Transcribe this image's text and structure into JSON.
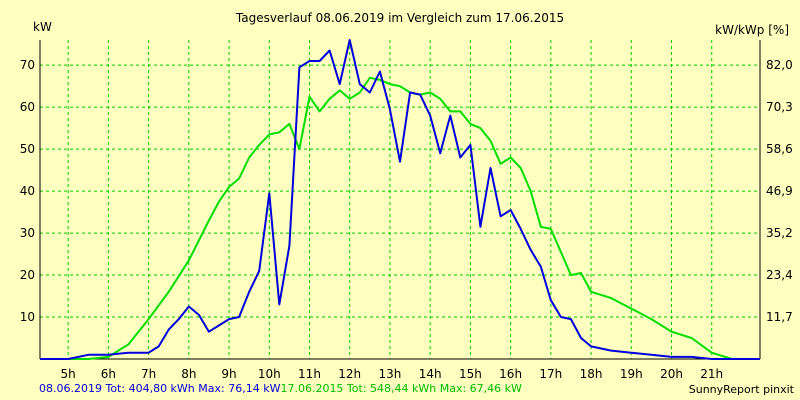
{
  "chart_data": {
    "type": "line",
    "title": "Tagesverlauf 08.06.2019 im Vergleich zum 17.06.2015",
    "ylabel_left": "kW",
    "ylabel_right": "kW/kWp [%]",
    "x_ticks": [
      "5h",
      "6h",
      "7h",
      "8h",
      "9h",
      "10h",
      "11h",
      "12h",
      "13h",
      "14h",
      "15h",
      "16h",
      "17h",
      "18h",
      "19h",
      "20h",
      "21h"
    ],
    "y_ticks_left": [
      "10",
      "20",
      "30",
      "40",
      "50",
      "60",
      "70"
    ],
    "y_ticks_right": [
      "11,7",
      "23,4",
      "35,2",
      "46,9",
      "58,6",
      "70,3",
      "82,0"
    ],
    "xlim": [
      4.3,
      22.2
    ],
    "ylim": [
      0,
      76
    ],
    "grid": true,
    "series": [
      {
        "name": "08.06.2019",
        "color": "#0000DD",
        "x": [
          4.3,
          5.0,
          5.5,
          6.0,
          6.5,
          7.0,
          7.25,
          7.5,
          7.75,
          8.0,
          8.25,
          8.5,
          8.75,
          9.0,
          9.25,
          9.5,
          9.75,
          10.0,
          10.25,
          10.5,
          10.75,
          11.0,
          11.25,
          11.5,
          11.75,
          12.0,
          12.25,
          12.5,
          12.75,
          13.0,
          13.25,
          13.5,
          13.75,
          14.0,
          14.25,
          14.5,
          14.75,
          15.0,
          15.25,
          15.5,
          15.75,
          16.0,
          16.25,
          16.5,
          16.75,
          17.0,
          17.25,
          17.5,
          17.75,
          18.0,
          18.5,
          19.0,
          19.5,
          20.0,
          20.5,
          21.0,
          21.5,
          22.2
        ],
        "values": [
          0,
          0,
          1,
          1,
          1.5,
          1.5,
          3,
          7,
          9.5,
          12.5,
          10.5,
          6.5,
          8,
          9.5,
          10,
          16,
          21,
          39.5,
          13,
          27,
          69.5,
          71,
          71,
          73.5,
          65.5,
          76,
          65.5,
          63.5,
          68.5,
          59.5,
          47,
          63.5,
          63,
          58,
          49,
          58,
          48,
          51,
          31.5,
          45.5,
          34,
          35.5,
          31,
          26,
          22,
          14,
          10,
          9.5,
          5,
          3,
          2,
          1.5,
          1,
          0.5,
          0.5,
          0,
          0,
          0
        ]
      },
      {
        "name": "17.06.2015",
        "color": "#00DD00",
        "x": [
          4.3,
          5.0,
          5.5,
          6.0,
          6.5,
          7.0,
          7.5,
          8.0,
          8.5,
          8.75,
          9.0,
          9.25,
          9.5,
          9.75,
          10.0,
          10.25,
          10.5,
          10.75,
          11.0,
          11.25,
          11.5,
          11.75,
          12.0,
          12.25,
          12.5,
          12.75,
          13.0,
          13.25,
          13.5,
          13.75,
          14.0,
          14.25,
          14.5,
          14.75,
          15.0,
          15.25,
          15.5,
          15.75,
          16.0,
          16.25,
          16.5,
          16.75,
          17.0,
          17.25,
          17.5,
          17.75,
          18.0,
          18.5,
          19.0,
          19.5,
          20.0,
          20.5,
          21.0,
          21.5,
          22.2
        ],
        "values": [
          0,
          0,
          0,
          0.5,
          3.5,
          9.5,
          16,
          23.5,
          33,
          37.5,
          41,
          43,
          48,
          51,
          53.5,
          54,
          56,
          50,
          62.5,
          59,
          62,
          64,
          62,
          63.5,
          67,
          66.5,
          65.5,
          65,
          63.5,
          63,
          63.5,
          62,
          59,
          59,
          56,
          55,
          52,
          46.5,
          48,
          45.5,
          40,
          31.5,
          31,
          25.5,
          20,
          20.5,
          16,
          14.5,
          12,
          9.5,
          6.5,
          5,
          1.5,
          0,
          0
        ]
      }
    ]
  },
  "footer": {
    "series1": "08.06.2019 Tot: 404,80 kWh Max: 76,14 kW",
    "series2": "17.06.2015 Tot: 548,44 kWh Max: 67,46 kW"
  },
  "credit": "SunnyReport pinxit",
  "colors": {
    "background": "#FFFFC0",
    "grid": "#00CC00",
    "axis": "#000000"
  }
}
